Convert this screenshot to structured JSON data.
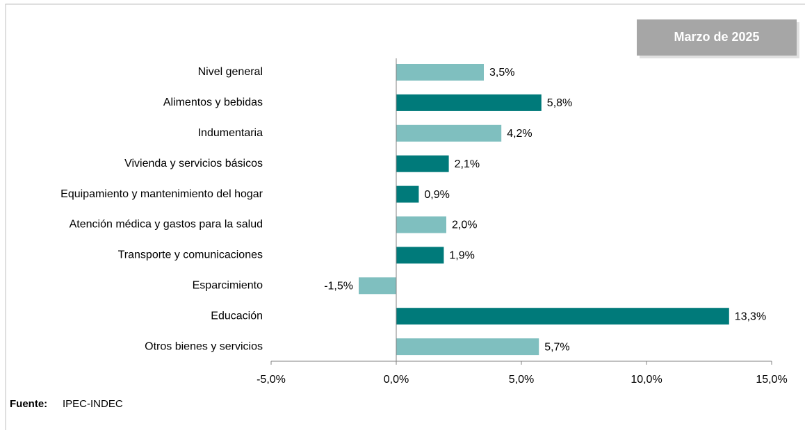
{
  "chart_data": {
    "type": "bar",
    "orientation": "horizontal",
    "badge": "Marzo de 2025",
    "source_label": "Fuente:",
    "source": "IPEC-INDEC",
    "categories": [
      "Nivel general",
      "Alimentos y bebidas",
      "Indumentaria",
      "Vivienda y servicios básicos",
      "Equipamiento y mantenimiento del hogar",
      "Atención médica y gastos para la salud",
      "Transporte y comunicaciones",
      "Esparcimiento",
      "Educación",
      "Otros bienes y servicios"
    ],
    "values": [
      3.5,
      5.8,
      4.2,
      2.1,
      0.9,
      2.0,
      1.9,
      -1.5,
      13.3,
      5.7
    ],
    "value_labels": [
      "3,5%",
      "5,8%",
      "4,2%",
      "2,1%",
      "0,9%",
      "2,0%",
      "1,9%",
      "-1,5%",
      "13,3%",
      "5,7%"
    ],
    "colors": [
      "#7fbfbf",
      "#007a7a",
      "#7fbfbf",
      "#007a7a",
      "#007a7a",
      "#7fbfbf",
      "#007a7a",
      "#7fbfbf",
      "#007a7a",
      "#7fbfbf"
    ],
    "xlim": [
      -5,
      15
    ],
    "xticks": [
      {
        "value": -5,
        "label": "-5,0%"
      },
      {
        "value": 0,
        "label": "0,0%"
      },
      {
        "value": 5,
        "label": "5,0%"
      },
      {
        "value": 10,
        "label": "10,0%"
      },
      {
        "value": 15,
        "label": "15,0%"
      }
    ]
  }
}
